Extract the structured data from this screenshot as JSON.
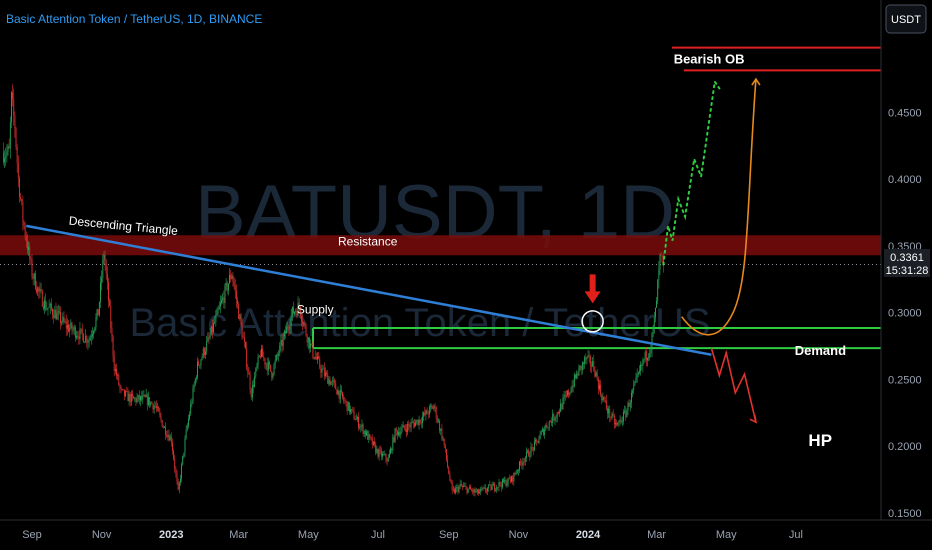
{
  "header": {
    "title": "Basic Attention Token / TetherUS, 1D, BINANCE"
  },
  "watermark": {
    "primary": "BATUSDT, 1D",
    "secondary": "Basic Attention Token / TetherUS"
  },
  "price_axis": {
    "currency_button": "USDT",
    "current_price": "0.3361",
    "countdown": "15:31:28"
  },
  "colors": {
    "background": "#000000",
    "candle_up": "#26a65b",
    "candle_down": "#e0322f",
    "trendline": "#2f7fd6",
    "zone_lines": "#2ecc40",
    "resistance_band": "#7a0c0c",
    "bearish_ob": "#e02020",
    "projection_bull": "#2ecc40",
    "projection_curve": "#e8891c",
    "projection_bear": "#e0322f"
  },
  "chart_data": {
    "type": "candlestick",
    "title": "Basic Attention Token / TetherUS, 1D, BINANCE",
    "x_ticks": [
      "Sep",
      "Nov",
      "2023",
      "Mar",
      "May",
      "Jul",
      "Sep",
      "Nov",
      "2024",
      "Mar",
      "May",
      "Jul"
    ],
    "x_tick_days": [
      0,
      61,
      122,
      181,
      242,
      303,
      365,
      426,
      487,
      547,
      608,
      669
    ],
    "y_ticks": [
      0.15,
      0.2,
      0.25,
      0.3,
      0.35,
      0.4,
      0.45
    ],
    "ylim": [
      0.145,
      0.5
    ],
    "current_price": 0.3361,
    "price_path": [
      [
        -20,
        0.42
      ],
      [
        -18,
        0.46
      ],
      [
        -15,
        0.44
      ],
      [
        -12,
        0.4
      ],
      [
        -8,
        0.37
      ],
      [
        -4,
        0.35
      ],
      [
        0,
        0.33
      ],
      [
        6,
        0.315
      ],
      [
        12,
        0.305
      ],
      [
        20,
        0.3
      ],
      [
        30,
        0.29
      ],
      [
        40,
        0.285
      ],
      [
        50,
        0.28
      ],
      [
        58,
        0.3
      ],
      [
        63,
        0.345
      ],
      [
        67,
        0.31
      ],
      [
        72,
        0.26
      ],
      [
        78,
        0.24
      ],
      [
        88,
        0.235
      ],
      [
        100,
        0.235
      ],
      [
        108,
        0.23
      ],
      [
        115,
        0.215
      ],
      [
        122,
        0.205
      ],
      [
        128,
        0.165
      ],
      [
        135,
        0.21
      ],
      [
        145,
        0.26
      ],
      [
        155,
        0.28
      ],
      [
        165,
        0.305
      ],
      [
        175,
        0.33
      ],
      [
        180,
        0.305
      ],
      [
        186,
        0.275
      ],
      [
        192,
        0.24
      ],
      [
        200,
        0.27
      ],
      [
        210,
        0.255
      ],
      [
        220,
        0.28
      ],
      [
        228,
        0.3
      ],
      [
        234,
        0.305
      ],
      [
        240,
        0.285
      ],
      [
        246,
        0.27
      ],
      [
        255,
        0.255
      ],
      [
        265,
        0.245
      ],
      [
        280,
        0.225
      ],
      [
        292,
        0.21
      ],
      [
        303,
        0.195
      ],
      [
        312,
        0.19
      ],
      [
        318,
        0.21
      ],
      [
        330,
        0.215
      ],
      [
        340,
        0.22
      ],
      [
        352,
        0.23
      ],
      [
        360,
        0.205
      ],
      [
        368,
        0.165
      ],
      [
        375,
        0.17
      ],
      [
        390,
        0.165
      ],
      [
        405,
        0.17
      ],
      [
        420,
        0.175
      ],
      [
        430,
        0.19
      ],
      [
        440,
        0.2
      ],
      [
        450,
        0.215
      ],
      [
        460,
        0.225
      ],
      [
        470,
        0.24
      ],
      [
        478,
        0.255
      ],
      [
        485,
        0.265
      ],
      [
        492,
        0.26
      ],
      [
        498,
        0.24
      ],
      [
        505,
        0.225
      ],
      [
        512,
        0.215
      ],
      [
        520,
        0.225
      ],
      [
        528,
        0.245
      ],
      [
        536,
        0.265
      ],
      [
        542,
        0.275
      ],
      [
        546,
        0.3
      ],
      [
        550,
        0.34
      ],
      [
        553,
        0.336
      ]
    ],
    "zones": {
      "resistance": [
        0.343,
        0.358
      ],
      "supply_line": 0.2885,
      "demand_line": 0.2735,
      "bearish_ob_top": 0.4985,
      "bearish_ob_line": 0.4815
    },
    "trendline": {
      "from": [
        -5,
        0.365
      ],
      "to": [
        595,
        0.2685
      ]
    },
    "highlight": {
      "day": 491,
      "price": 0.2935
    },
    "projection_bull": [
      [
        553,
        0.336
      ],
      [
        557,
        0.365
      ],
      [
        561,
        0.354
      ],
      [
        566,
        0.385
      ],
      [
        572,
        0.372
      ],
      [
        580,
        0.415
      ],
      [
        586,
        0.402
      ],
      [
        598,
        0.473
      ],
      [
        602,
        0.468
      ]
    ],
    "projection_curve": [
      [
        569,
        0.297
      ],
      [
        582,
        0.282
      ],
      [
        600,
        0.275
      ],
      [
        614,
        0.3
      ],
      [
        626,
        0.38
      ],
      [
        634,
        0.475
      ]
    ],
    "projection_bear": [
      [
        595,
        0.2735
      ],
      [
        602,
        0.253
      ],
      [
        608,
        0.27
      ],
      [
        616,
        0.24
      ],
      [
        624,
        0.254
      ],
      [
        634,
        0.218
      ]
    ],
    "annotations": [
      {
        "text": "Descending Triangle",
        "day": 32,
        "price": 0.366
      },
      {
        "text": "Resistance",
        "day": 268,
        "price": 0.3505
      },
      {
        "text": "Supply",
        "day": 232,
        "price": 0.2995
      },
      {
        "text": "Demand",
        "day": 668,
        "price": 0.2685
      },
      {
        "text": "Bearish OB",
        "day": 562,
        "price": 0.4865
      },
      {
        "text": "HP",
        "day": 680,
        "price": 0.2
      }
    ]
  }
}
